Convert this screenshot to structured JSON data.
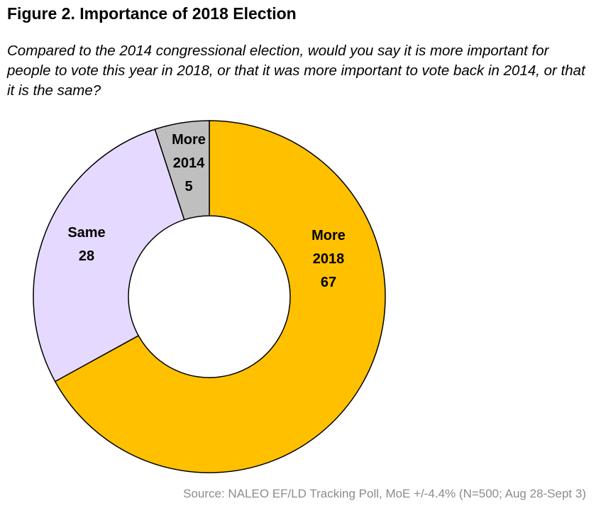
{
  "figure": {
    "title": "Figure 2. Importance of 2018 Election",
    "subtitle": "Compared to the 2014 congressional election, would you say it is more important for people to vote this year in 2018, or that it was more important to vote back in 2014, or that it is the same?",
    "source": "Source: NALEO EF/LD Tracking Poll, MoE +/-4.4% (N=500; Aug 28-Sept 3)"
  },
  "chart_data": {
    "type": "pie",
    "style": "donut",
    "title": "Figure 2. Importance of 2018 Election",
    "categories": [
      "More 2018",
      "Same",
      "More 2014"
    ],
    "values": [
      67,
      28,
      5
    ],
    "label_lines": [
      [
        "More",
        "2018",
        "67"
      ],
      [
        "Same",
        "28"
      ],
      [
        "More",
        "2014",
        "5"
      ]
    ],
    "colors": [
      "#FFC000",
      "#E6D9FF",
      "#BFBFBF"
    ],
    "slice_order": "clockwise from 12 o'clock",
    "legend": "none"
  }
}
